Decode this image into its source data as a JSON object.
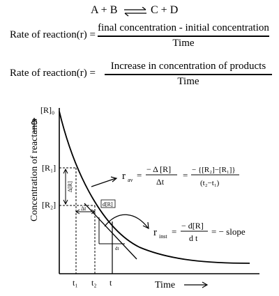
{
  "reaction": {
    "left": "A + B",
    "right": "C + D"
  },
  "eq1": {
    "lhs": "Rate of reaction(r) =",
    "numerator": "final concentration - initial concentration",
    "denominator": "Time"
  },
  "eq2": {
    "lhs": "Rate of reaction(r) =",
    "numerator": "Increase in concentration of products",
    "denominator": "Time"
  },
  "graph": {
    "y_axis_label": "Concentration of reactants",
    "x_axis_label": "Time",
    "r0_label": "[R]₀",
    "r1_label": "[R₁]",
    "r2_label": "[R₂]",
    "delta_r_label": "Δ[R]",
    "delta_t_label": "Δt",
    "t1_label": "t₁",
    "t2_label": "t₂",
    "t_label": "t",
    "dr_label": "d[R]",
    "dt_label": "dt",
    "r_av_lhs": "r",
    "r_av_sub": "av",
    "r_av_num1": "− Δ [R]",
    "r_av_den1": "Δt",
    "r_av_num2": "− {[R₂]−[R₁]}",
    "r_av_den2": "(t₂−t₁)",
    "r_inst_lhs": "r",
    "r_inst_sub": "inst",
    "r_inst_num": "− d[R]",
    "r_inst_den": "d t",
    "slope_text": "= − slope",
    "equals": "="
  }
}
